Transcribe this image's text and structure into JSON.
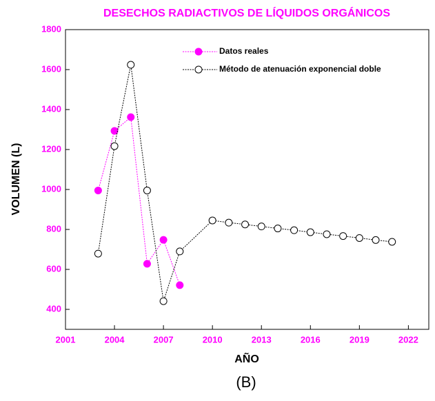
{
  "chart_data": {
    "type": "line",
    "title": "DESECHOS RADIACTIVOS DE LÍQUIDOS ORGÁNICOS",
    "x_label": "AÑO",
    "y_label": "VOLUMEN   (L)",
    "caption": "(B)",
    "xlim": [
      2001,
      2023.25
    ],
    "xticks": [
      2001,
      2004,
      2007,
      2010,
      2013,
      2016,
      2019,
      2022
    ],
    "ylim": [
      300,
      1800
    ],
    "yticks": [
      400,
      600,
      800,
      1000,
      1200,
      1400,
      1600,
      1800
    ],
    "legend": "top",
    "series": [
      {
        "name": "Datos reales",
        "color": "#ff00ff",
        "filled": true,
        "x": [
          2003,
          2004,
          2005,
          2006,
          2007,
          2008
        ],
        "values": [
          995,
          1293,
          1362,
          628,
          748,
          521
        ]
      },
      {
        "name": "Método de atenuación exponencial doble",
        "color": "#000000",
        "filled": false,
        "x": [
          2003,
          2004,
          2005,
          2006,
          2007,
          2008,
          2010,
          2011,
          2012,
          2013,
          2014,
          2015,
          2016,
          2017,
          2018,
          2019,
          2020,
          2021
        ],
        "values": [
          679,
          1217,
          1624,
          995,
          441,
          690,
          845,
          834,
          825,
          815,
          805,
          796,
          786,
          776,
          767,
          757,
          747,
          738
        ]
      }
    ]
  }
}
